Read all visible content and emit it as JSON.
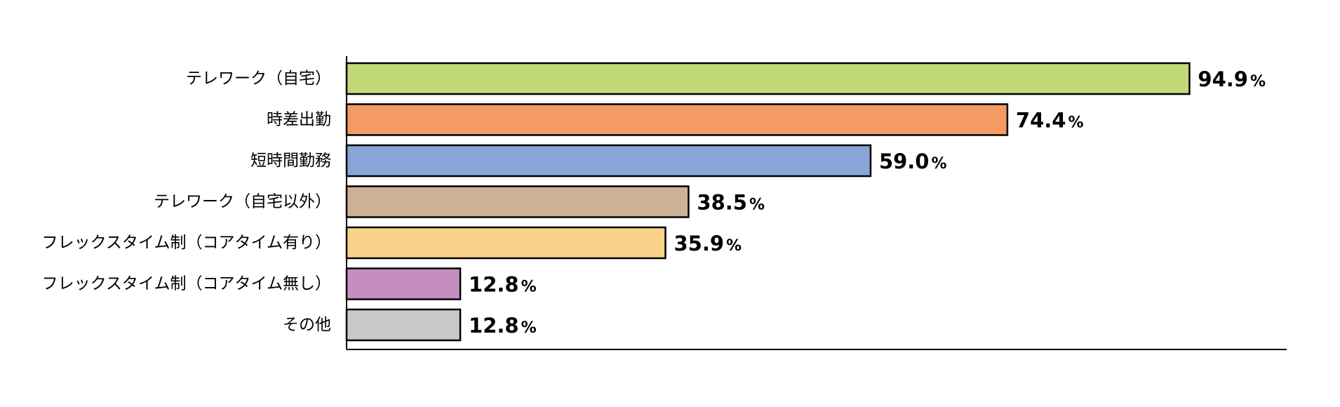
{
  "chart_data": {
    "type": "bar",
    "orientation": "horizontal",
    "categories": [
      "テレワーク（自宅）",
      "時差出勤",
      "短時間勤務",
      "テレワーク（自宅以外）",
      "フレックスタイム制（コアタイム有り）",
      "フレックスタイム制（コアタイム無し）",
      "その他"
    ],
    "values": [
      94.9,
      74.4,
      59.0,
      38.5,
      35.9,
      12.8,
      12.8
    ],
    "value_labels": [
      "94.9",
      "74.4",
      "59.0",
      "38.5",
      "35.9",
      "12.8",
      "12.8"
    ],
    "unit": "%",
    "colors": [
      "#C2D97A",
      "#F49A65",
      "#87A5D5",
      "#CDB196",
      "#F9D38A",
      "#C58EBE",
      "#C8C8C8"
    ],
    "xlim": [
      0,
      100
    ],
    "title": "",
    "xlabel": "",
    "ylabel": "",
    "grid": false,
    "legend": "none"
  }
}
